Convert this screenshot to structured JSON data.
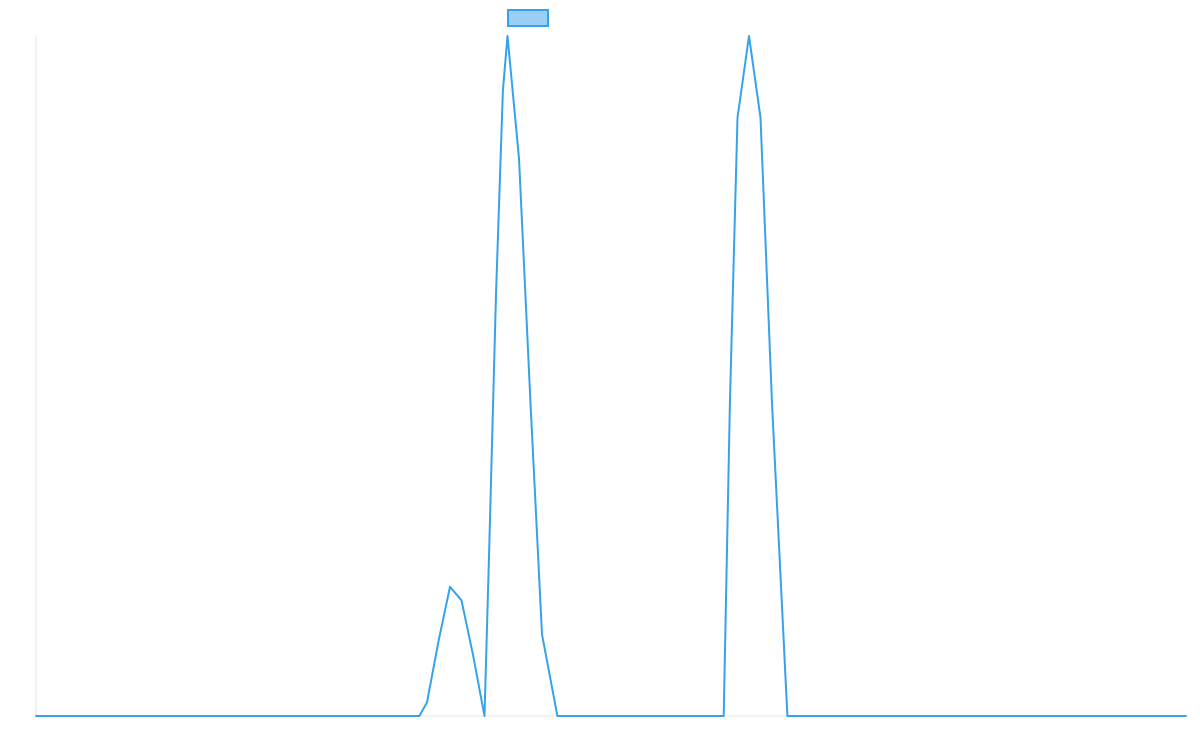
{
  "chart_data": {
    "type": "line",
    "title": "",
    "xlabel": "",
    "ylabel": "",
    "grid": false,
    "legend": "top-center",
    "xlim": [
      0,
      50
    ],
    "ylim": [
      0,
      1
    ],
    "colors": {
      "line": "#36a2eb",
      "legend_fill": "#9ad0f5",
      "axis": "#e6e6e6"
    },
    "series": [
      {
        "name": "",
        "x": [
          0,
          2,
          4,
          6,
          8,
          10,
          12,
          14,
          15,
          16,
          16.67,
          17,
          17.5,
          18,
          18.5,
          19,
          19.5,
          19.7,
          20,
          20.3,
          20.5,
          21,
          21.5,
          22,
          22.67,
          23,
          24,
          26,
          28,
          29,
          29.5,
          29.9,
          30.17,
          30.5,
          31,
          31.5,
          32,
          32.67,
          33,
          34,
          36,
          38,
          40,
          42,
          44,
          46,
          48,
          50
        ],
        "values": [
          0,
          0,
          0,
          0,
          0,
          0,
          0,
          0,
          0,
          0,
          0,
          0.02,
          0.11,
          0.19,
          0.17,
          0.09,
          0,
          0.24,
          0.62,
          0.92,
          1.0,
          0.82,
          0.46,
          0.12,
          0,
          0,
          0,
          0,
          0,
          0,
          0,
          0,
          0.46,
          0.88,
          1.0,
          0.88,
          0.46,
          0,
          0,
          0,
          0,
          0,
          0,
          0,
          0,
          0,
          0,
          0
        ]
      }
    ]
  }
}
